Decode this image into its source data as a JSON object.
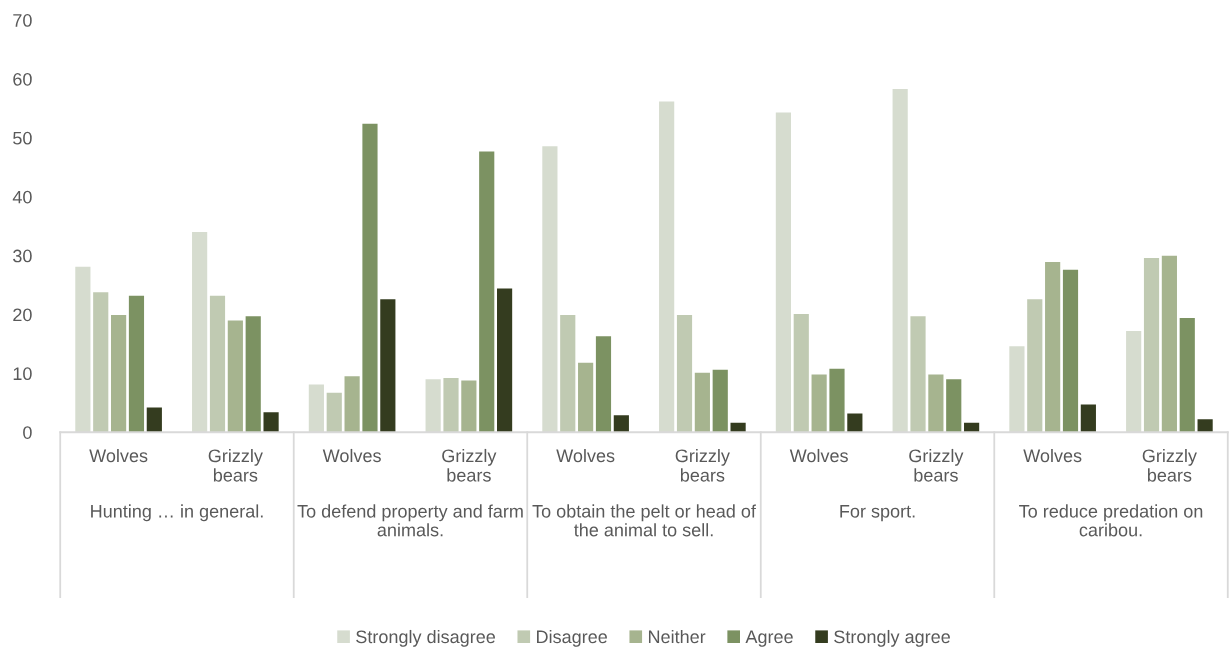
{
  "chart_data": {
    "type": "bar",
    "categories": [
      "Wolves",
      "Grizzly bears",
      "Wolves",
      "Grizzly bears",
      "Wolves",
      "Grizzly bears",
      "Wolves",
      "Grizzly bears",
      "Wolves",
      "Grizzly bears"
    ],
    "annotations": [
      "Hunting … in general.",
      "To defend property and farm animals.",
      "To obtain the pelt or head of the animal to sell.",
      "For sport.",
      "To reduce predation on caribou."
    ],
    "series": [
      {
        "name": "Strongly disagree",
        "color": "#d6dccf",
        "values": [
          28.1,
          34.0,
          8.1,
          9.0,
          48.6,
          56.2,
          54.3,
          58.3,
          14.6,
          17.2
        ]
      },
      {
        "name": "Disagree",
        "color": "#c0cab2",
        "values": [
          23.8,
          23.2,
          6.7,
          9.2,
          19.9,
          19.9,
          20.1,
          19.7,
          22.6,
          29.6
        ]
      },
      {
        "name": "Neither",
        "color": "#a6b48f",
        "values": [
          19.9,
          19.0,
          9.5,
          8.8,
          11.8,
          10.1,
          9.8,
          9.8,
          28.9,
          30.0
        ]
      },
      {
        "name": "Agree",
        "color": "#7c9262",
        "values": [
          23.2,
          19.7,
          52.4,
          47.7,
          16.3,
          10.6,
          10.8,
          9.0,
          27.6,
          19.4
        ]
      },
      {
        "name": "Strongly agree",
        "color": "#343c1f",
        "values": [
          4.2,
          3.4,
          22.6,
          24.4,
          2.9,
          1.6,
          3.2,
          1.6,
          4.7,
          2.2
        ]
      }
    ],
    "ylim": [
      0,
      70
    ],
    "yticks": [
      0,
      10,
      20,
      30,
      40,
      50,
      60,
      70
    ],
    "grid": false,
    "legend": "bottom"
  }
}
